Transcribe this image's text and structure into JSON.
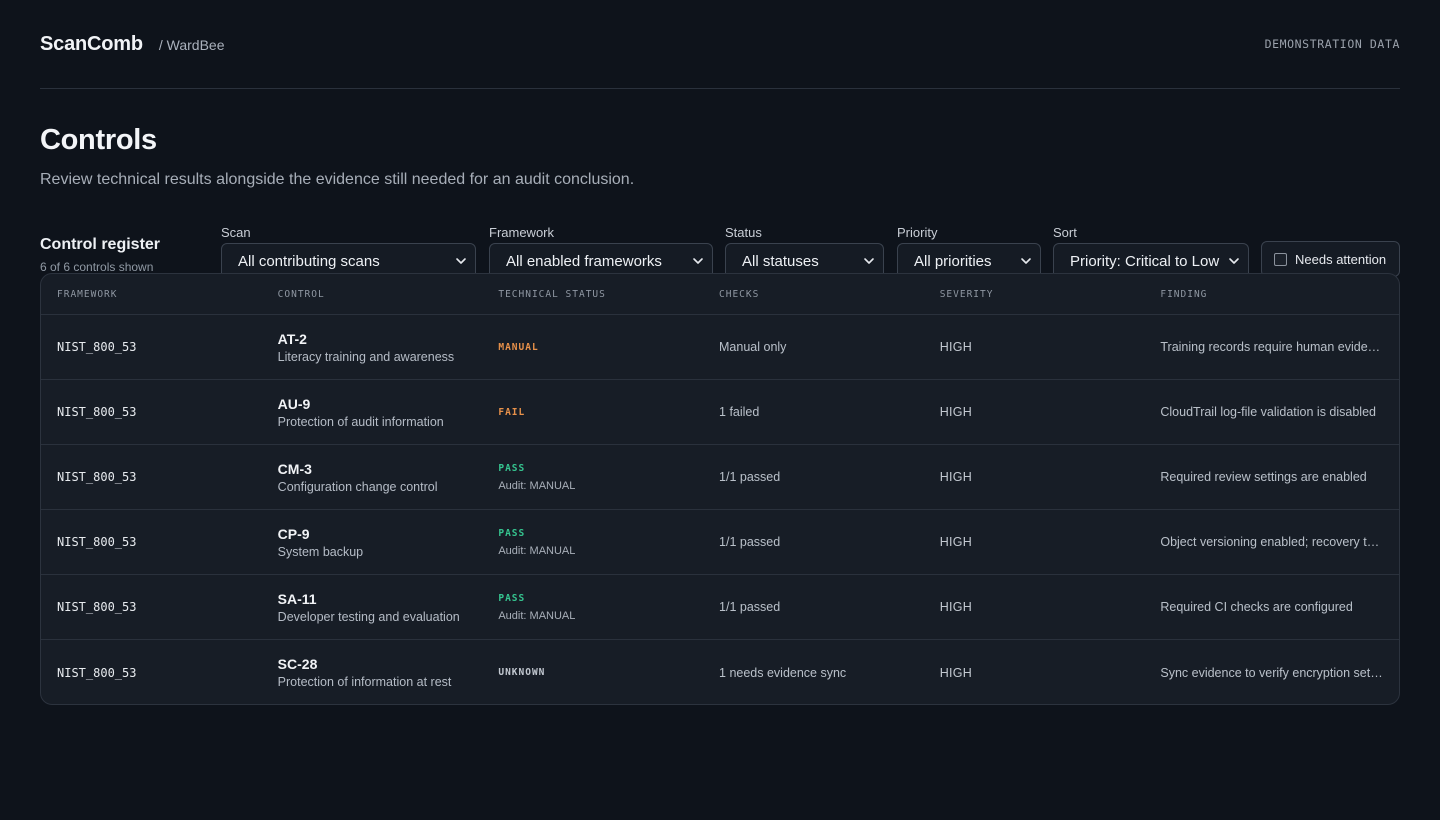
{
  "app": {
    "name": "ScanComb",
    "workspace": "/ WardBee",
    "demo_tag": "DEMONSTRATION DATA"
  },
  "page": {
    "title": "Controls",
    "description": "Review technical results alongside the evidence still needed for an audit conclusion."
  },
  "register": {
    "title": "Control register",
    "count": "6 of 6 controls shown"
  },
  "filters": {
    "scan": {
      "label": "Scan",
      "value": "All contributing scans"
    },
    "framework": {
      "label": "Framework",
      "value": "All enabled frameworks"
    },
    "status": {
      "label": "Status",
      "value": "All statuses"
    },
    "priority": {
      "label": "Priority",
      "value": "All priorities"
    },
    "sort": {
      "label": "Sort",
      "value": "Priority: Critical to Low"
    },
    "attention": {
      "label": "Needs attention",
      "checked": false
    }
  },
  "table": {
    "columns": [
      "FRAMEWORK",
      "CONTROL",
      "TECHNICAL STATUS",
      "CHECKS",
      "SEVERITY",
      "FINDING"
    ],
    "rows": [
      {
        "framework": "NIST_800_53",
        "control_id": "AT-2",
        "control_name": "Literacy training and awareness",
        "status": "MANUAL",
        "status_color": "#e8914a",
        "audit": "",
        "checks": "Manual only",
        "severity": "HIGH",
        "finding": "Training records require human evidence review"
      },
      {
        "framework": "NIST_800_53",
        "control_id": "AU-9",
        "control_name": "Protection of audit information",
        "status": "FAIL",
        "status_color": "#e8914a",
        "audit": "",
        "checks": "1 failed",
        "severity": "HIGH",
        "finding": "CloudTrail log-file validation is disabled"
      },
      {
        "framework": "NIST_800_53",
        "control_id": "CM-3",
        "control_name": "Configuration change control",
        "status": "PASS",
        "status_color": "#35c48f",
        "audit": "Audit: MANUAL",
        "checks": "1/1 passed",
        "severity": "HIGH",
        "finding": "Required review settings are enabled"
      },
      {
        "framework": "NIST_800_53",
        "control_id": "CP-9",
        "control_name": "System backup",
        "status": "PASS",
        "status_color": "#35c48f",
        "audit": "Audit: MANUAL",
        "checks": "1/1 passed",
        "severity": "HIGH",
        "finding": "Object versioning enabled; recovery tested"
      },
      {
        "framework": "NIST_800_53",
        "control_id": "SA-11",
        "control_name": "Developer testing and evaluation",
        "status": "PASS",
        "status_color": "#35c48f",
        "audit": "Audit: MANUAL",
        "checks": "1/1 passed",
        "severity": "HIGH",
        "finding": "Required CI checks are configured"
      },
      {
        "framework": "NIST_800_53",
        "control_id": "SC-28",
        "control_name": "Protection of information at rest",
        "status": "UNKNOWN",
        "status_color": "#c3c9d1",
        "audit": "",
        "checks": "1 needs evidence sync",
        "severity": "HIGH",
        "finding": "Sync evidence to verify encryption settings"
      }
    ]
  }
}
